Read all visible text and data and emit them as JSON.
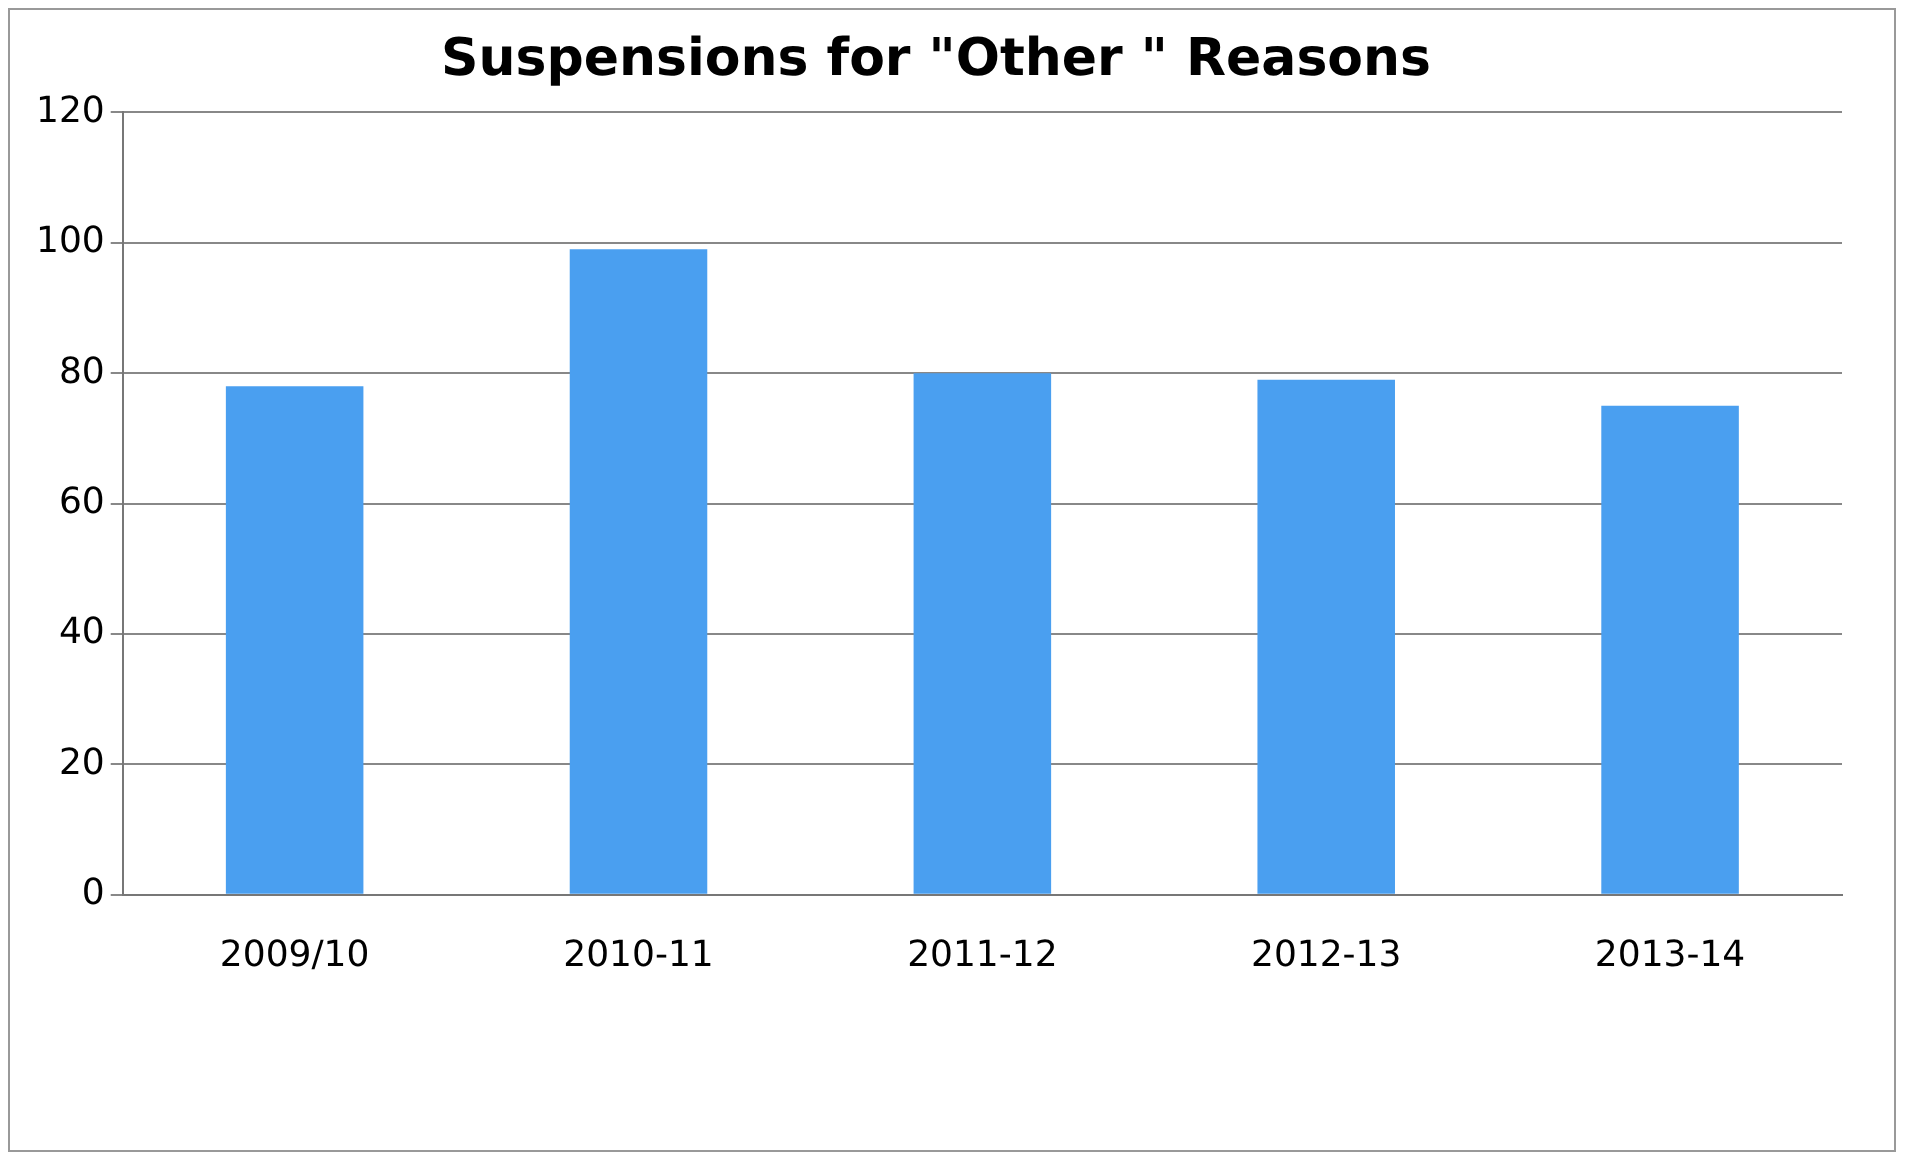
{
  "chart_data": {
    "type": "bar",
    "title": "Suspensions for \"Other \" Reasons",
    "categories": [
      "2009/10",
      "2010-11",
      "2011-12",
      "2012-13",
      "2013-14"
    ],
    "values": [
      78,
      99,
      80,
      79,
      75
    ],
    "color": "#4a9ff0",
    "ylim": [
      0,
      120
    ],
    "yticks": [
      0,
      20,
      40,
      60,
      80,
      100,
      120
    ],
    "grid": "y",
    "legend": false
  }
}
